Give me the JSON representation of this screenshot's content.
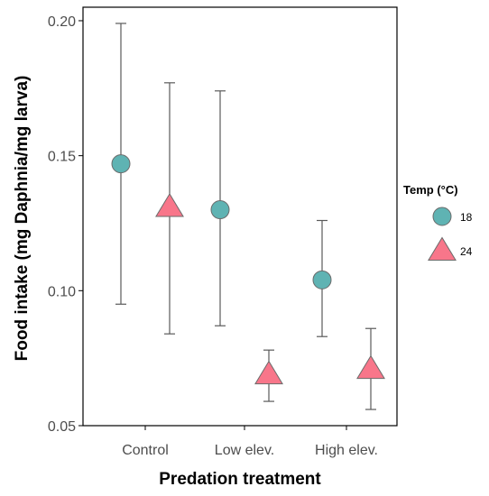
{
  "colors": {
    "t18": "#5fb3b3",
    "t24": "#f8768a",
    "outline": "#6b6b6b",
    "errorbar": "#5a5a5a",
    "axis": "#000000"
  },
  "chart_data": {
    "type": "scatter",
    "xlabel": "Predation treatment",
    "ylabel": "Food intake (mg Daphnia/mg larva)",
    "categories": [
      "Control",
      "Low elev.",
      "High elev."
    ],
    "ylim": [
      0.05,
      0.205
    ],
    "yticks": [
      0.05,
      0.1,
      0.15,
      0.2
    ],
    "ytick_labels": [
      "0.05",
      "0.10",
      "0.15",
      "0.20"
    ],
    "legend": {
      "title": "Temp (°C)",
      "position": "right"
    },
    "series": [
      {
        "name": "18",
        "marker": "circle",
        "values": [
          0.147,
          0.13,
          0.104
        ],
        "lower": [
          0.095,
          0.087,
          0.083
        ],
        "upper": [
          0.199,
          0.174,
          0.126
        ]
      },
      {
        "name": "24",
        "marker": "triangle",
        "values": [
          0.131,
          0.069,
          0.071
        ],
        "lower": [
          0.084,
          0.059,
          0.056
        ],
        "upper": [
          0.177,
          0.078,
          0.086
        ]
      }
    ]
  }
}
